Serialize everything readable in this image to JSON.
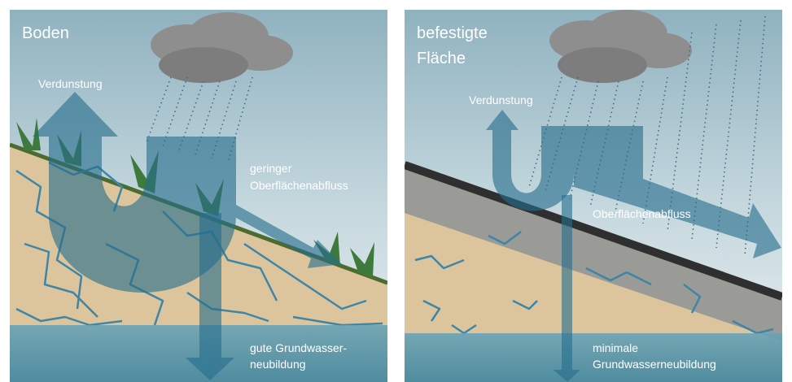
{
  "panels": [
    {
      "title": [
        "Boden"
      ],
      "labels": [
        {
          "lines": [
            "Verdunstung"
          ]
        },
        {
          "lines": [
            "geringer",
            "Oberflächenabfluss"
          ]
        },
        {
          "lines": [
            "gute Grundwasser-",
            "neubildung"
          ]
        }
      ]
    },
    {
      "title": [
        "befestigte",
        "Fläche"
      ],
      "labels": [
        {
          "lines": [
            "Verdunstung"
          ]
        },
        {
          "lines": [
            "Oberflächenabfluss"
          ]
        },
        {
          "lines": [
            "minimale",
            "Grundwasserneubildung"
          ]
        }
      ]
    }
  ]
}
